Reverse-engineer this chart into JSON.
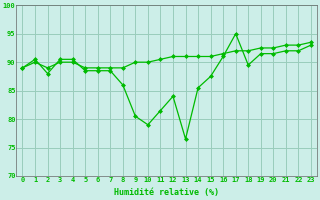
{
  "xlabel": "Humidité relative (%)",
  "background_color": "#cceee8",
  "grid_color": "#99ccbb",
  "line_color": "#00bb00",
  "xlim_min": -0.5,
  "xlim_max": 23.5,
  "ylim_min": 70,
  "ylim_max": 100,
  "yticks": [
    70,
    75,
    80,
    85,
    90,
    95,
    100
  ],
  "xticks": [
    0,
    1,
    2,
    3,
    4,
    5,
    6,
    7,
    8,
    9,
    10,
    11,
    12,
    13,
    14,
    15,
    16,
    17,
    18,
    19,
    20,
    21,
    22,
    23
  ],
  "series1_x": [
    0,
    1,
    2,
    3,
    4,
    5,
    6,
    7,
    8,
    9,
    10,
    11,
    12,
    13,
    14,
    15,
    16,
    17,
    18,
    19,
    20,
    21,
    22,
    23
  ],
  "series1_y": [
    89,
    90.5,
    88,
    90.5,
    90.5,
    88.5,
    88.5,
    88.5,
    86,
    80.5,
    79,
    81.5,
    84,
    76.5,
    85.5,
    87.5,
    91,
    95,
    89.5,
    91.5,
    91.5,
    92,
    92,
    93
  ],
  "series2_x": [
    0,
    1,
    2,
    3,
    4,
    5,
    6,
    7,
    8,
    9,
    10,
    11,
    12,
    13,
    14,
    15,
    16,
    17,
    18,
    19,
    20,
    21,
    22,
    23
  ],
  "series2_y": [
    89,
    90,
    89,
    90,
    90,
    89,
    89,
    89,
    89,
    90,
    90,
    90.5,
    91,
    91,
    91,
    91,
    91.5,
    92,
    92,
    92.5,
    92.5,
    93,
    93,
    93.5
  ],
  "tick_fontsize": 5.0,
  "xlabel_fontsize": 6.0
}
